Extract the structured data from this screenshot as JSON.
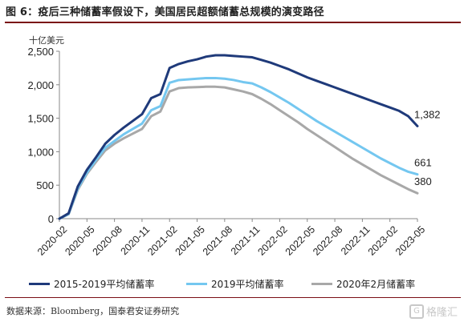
{
  "title": "图 6：疫后三种储蓄率假设下，美国居民超额储蓄总规模的演变路径",
  "unit_label": "十亿美元",
  "source": "数据来源：Bloomberg，国泰君安证券研究",
  "watermark": {
    "icon": "G",
    "text": "格隆汇"
  },
  "chart_data": {
    "type": "line",
    "xlim": [
      "2020-02",
      "2023-05"
    ],
    "ylim": [
      0,
      2500
    ],
    "yticks": [
      0,
      500,
      1000,
      1500,
      2000,
      2500
    ],
    "ytick_labels": [
      "0",
      "500",
      "1,000",
      "1,500",
      "2,000",
      "2,500"
    ],
    "xticks": [
      "2020-02",
      "2020-05",
      "2020-08",
      "2020-11",
      "2021-02",
      "2021-05",
      "2021-08",
      "2021-11",
      "2022-02",
      "2022-05",
      "2022-08",
      "2022-11",
      "2023-02",
      "2023-05"
    ],
    "grid": false,
    "legend_position": "bottom",
    "series": [
      {
        "name": "2015-2019平均储蓄率",
        "color": "#1f3a7a",
        "end_label": "1,382",
        "points": [
          [
            "2020-02",
            0
          ],
          [
            "2020-03",
            80
          ],
          [
            "2020-04",
            480
          ],
          [
            "2020-05",
            730
          ],
          [
            "2020-06",
            920
          ],
          [
            "2020-07",
            1120
          ],
          [
            "2020-08",
            1250
          ],
          [
            "2020-09",
            1360
          ],
          [
            "2020-10",
            1460
          ],
          [
            "2020-11",
            1560
          ],
          [
            "2020-12",
            1800
          ],
          [
            "2021-01",
            1860
          ],
          [
            "2021-02",
            2250
          ],
          [
            "2021-03",
            2310
          ],
          [
            "2021-04",
            2350
          ],
          [
            "2021-05",
            2380
          ],
          [
            "2021-06",
            2420
          ],
          [
            "2021-07",
            2440
          ],
          [
            "2021-08",
            2440
          ],
          [
            "2021-09",
            2430
          ],
          [
            "2021-10",
            2420
          ],
          [
            "2021-11",
            2410
          ],
          [
            "2021-12",
            2370
          ],
          [
            "2022-01",
            2330
          ],
          [
            "2022-02",
            2280
          ],
          [
            "2022-03",
            2230
          ],
          [
            "2022-04",
            2170
          ],
          [
            "2022-05",
            2110
          ],
          [
            "2022-06",
            2060
          ],
          [
            "2022-07",
            2010
          ],
          [
            "2022-08",
            1960
          ],
          [
            "2022-09",
            1910
          ],
          [
            "2022-10",
            1860
          ],
          [
            "2022-11",
            1810
          ],
          [
            "2022-12",
            1760
          ],
          [
            "2023-01",
            1710
          ],
          [
            "2023-02",
            1660
          ],
          [
            "2023-03",
            1610
          ],
          [
            "2023-04",
            1530
          ],
          [
            "2023-05",
            1382
          ]
        ]
      },
      {
        "name": "2019平均储蓄率",
        "color": "#74c7f0",
        "end_label": "661",
        "points": [
          [
            "2020-02",
            0
          ],
          [
            "2020-03",
            70
          ],
          [
            "2020-04",
            450
          ],
          [
            "2020-05",
            690
          ],
          [
            "2020-06",
            880
          ],
          [
            "2020-07",
            1060
          ],
          [
            "2020-08",
            1160
          ],
          [
            "2020-09",
            1260
          ],
          [
            "2020-10",
            1340
          ],
          [
            "2020-11",
            1420
          ],
          [
            "2020-12",
            1620
          ],
          [
            "2021-01",
            1680
          ],
          [
            "2021-02",
            2030
          ],
          [
            "2021-03",
            2070
          ],
          [
            "2021-04",
            2080
          ],
          [
            "2021-05",
            2090
          ],
          [
            "2021-06",
            2100
          ],
          [
            "2021-07",
            2100
          ],
          [
            "2021-08",
            2090
          ],
          [
            "2021-09",
            2070
          ],
          [
            "2021-10",
            2040
          ],
          [
            "2021-11",
            2020
          ],
          [
            "2021-12",
            1960
          ],
          [
            "2022-01",
            1890
          ],
          [
            "2022-02",
            1810
          ],
          [
            "2022-03",
            1730
          ],
          [
            "2022-04",
            1640
          ],
          [
            "2022-05",
            1550
          ],
          [
            "2022-06",
            1460
          ],
          [
            "2022-07",
            1380
          ],
          [
            "2022-08",
            1300
          ],
          [
            "2022-09",
            1220
          ],
          [
            "2022-10",
            1140
          ],
          [
            "2022-11",
            1060
          ],
          [
            "2022-12",
            980
          ],
          [
            "2023-01",
            900
          ],
          [
            "2023-02",
            830
          ],
          [
            "2023-03",
            760
          ],
          [
            "2023-04",
            700
          ],
          [
            "2023-05",
            661
          ]
        ]
      },
      {
        "name": "2020年2月储蓄率",
        "color": "#a8a8a8",
        "end_label": "380",
        "points": [
          [
            "2020-02",
            0
          ],
          [
            "2020-03",
            65
          ],
          [
            "2020-04",
            430
          ],
          [
            "2020-05",
            670
          ],
          [
            "2020-06",
            850
          ],
          [
            "2020-07",
            1020
          ],
          [
            "2020-08",
            1120
          ],
          [
            "2020-09",
            1200
          ],
          [
            "2020-10",
            1270
          ],
          [
            "2020-11",
            1340
          ],
          [
            "2020-12",
            1530
          ],
          [
            "2021-01",
            1600
          ],
          [
            "2021-02",
            1900
          ],
          [
            "2021-03",
            1950
          ],
          [
            "2021-04",
            1960
          ],
          [
            "2021-05",
            1965
          ],
          [
            "2021-06",
            1970
          ],
          [
            "2021-07",
            1970
          ],
          [
            "2021-08",
            1960
          ],
          [
            "2021-09",
            1930
          ],
          [
            "2021-10",
            1900
          ],
          [
            "2021-11",
            1860
          ],
          [
            "2021-12",
            1790
          ],
          [
            "2022-01",
            1710
          ],
          [
            "2022-02",
            1620
          ],
          [
            "2022-03",
            1530
          ],
          [
            "2022-04",
            1440
          ],
          [
            "2022-05",
            1340
          ],
          [
            "2022-06",
            1250
          ],
          [
            "2022-07",
            1160
          ],
          [
            "2022-08",
            1070
          ],
          [
            "2022-09",
            980
          ],
          [
            "2022-10",
            890
          ],
          [
            "2022-11",
            810
          ],
          [
            "2022-12",
            730
          ],
          [
            "2023-01",
            650
          ],
          [
            "2023-02",
            580
          ],
          [
            "2023-03",
            510
          ],
          [
            "2023-04",
            440
          ],
          [
            "2023-05",
            380
          ]
        ]
      }
    ]
  }
}
